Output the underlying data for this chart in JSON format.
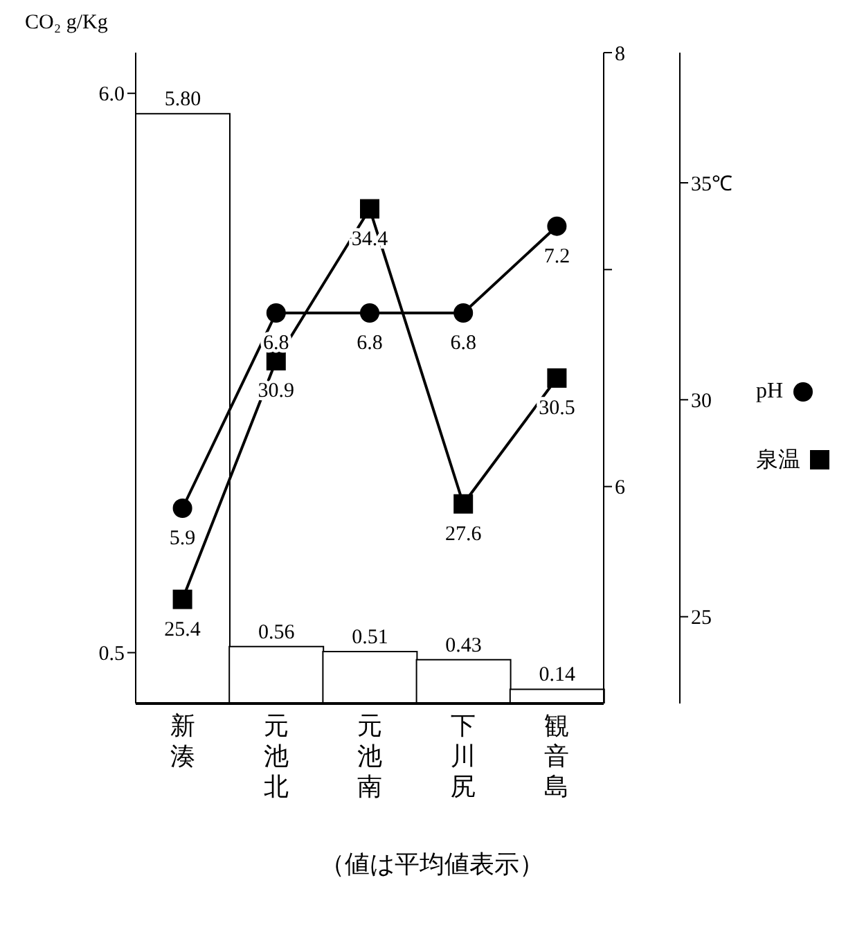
{
  "chart_data": {
    "type": "bar",
    "ylabel": "CO₂ g/Kg",
    "annotations": [
      "（値は平均値表示）"
    ],
    "categories": [
      "新湊",
      "元池北",
      "元池南",
      "下川尻",
      "観音島"
    ],
    "series": [
      {
        "color": "#ffffff",
        "values": [
          5.8,
          0.56,
          0.51,
          0.43,
          0.14
        ],
        "value_labels": [
          "5.80",
          "0.56",
          "0.51",
          "0.43",
          "0.14"
        ]
      },
      {
        "name": "pH",
        "type": "line",
        "axis": "y2",
        "marker": "circle",
        "color": "#000000",
        "values": [
          5.9,
          6.8,
          6.8,
          6.8,
          7.2
        ],
        "value_labels": [
          "5.9",
          "6.8",
          "6.8",
          "6.8",
          "7.2"
        ]
      },
      {
        "name": "泉温",
        "type": "line",
        "axis": "y3",
        "marker": "square",
        "color": "#000000",
        "values": [
          25.4,
          30.9,
          34.4,
          27.6,
          30.5
        ],
        "value_labels": [
          "25.4",
          "30.9",
          "34.4",
          "27.6",
          "30.5"
        ]
      }
    ],
    "ylim": [
      0,
      6.4
    ],
    "yticks": [
      0.5,
      {
        "value": 6,
        "label": "6.0"
      }
    ],
    "y2lim": [
      5,
      8
    ],
    "y2ticks": [
      6,
      {
        "value": 7,
        "label": null
      },
      8
    ],
    "y3lim": [
      23,
      38
    ],
    "y3ticks": [
      25,
      30,
      {
        "value": 35,
        "label": "35℃"
      }
    ],
    "grid": false,
    "legend": "right"
  }
}
